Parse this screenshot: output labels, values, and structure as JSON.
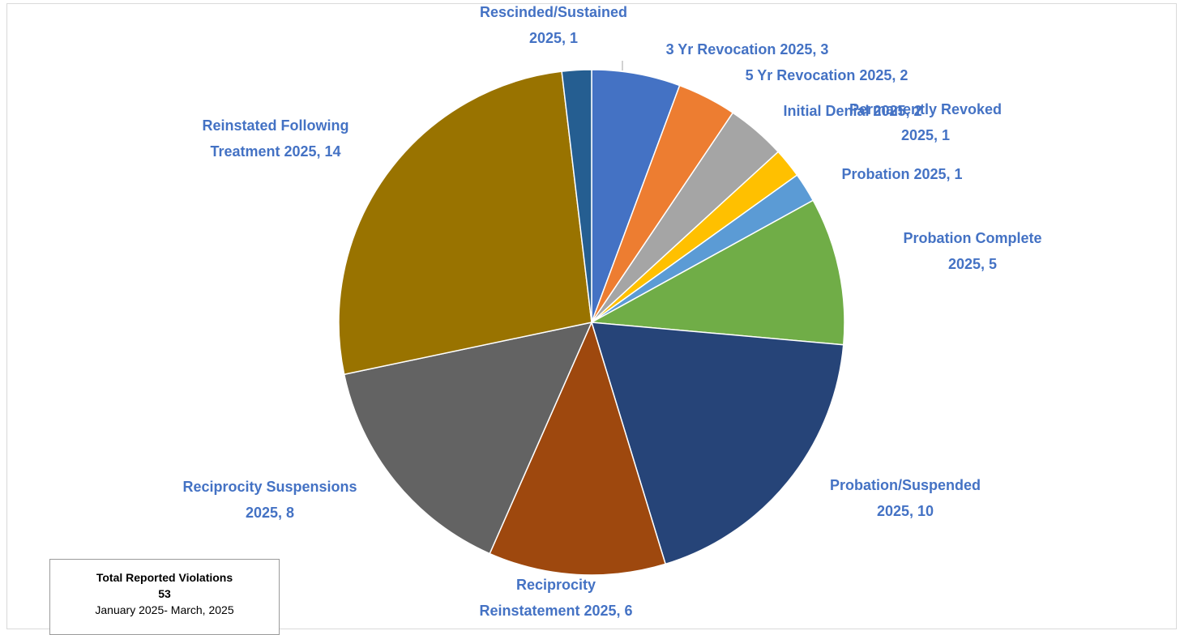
{
  "chart_data": {
    "type": "pie",
    "total_box": {
      "title": "Total Reported Violations",
      "total": "53",
      "period": "January 2025- March, 2025"
    },
    "slices": [
      {
        "name": "3 Yr Revocation",
        "year": "2025",
        "value": 3,
        "label": [
          "3 Yr Revocation 2025, 3"
        ],
        "color": "#4472c4"
      },
      {
        "name": "5 Yr Revocation",
        "year": "2025",
        "value": 2,
        "label": [
          "5 Yr Revocation 2025, 2"
        ],
        "color": "#ed7d31"
      },
      {
        "name": "Initial Denial",
        "year": "2025",
        "value": 2,
        "label": [
          "Initial Denial 2025, 2"
        ],
        "color": "#a5a5a5"
      },
      {
        "name": "Permanently Revoked",
        "year": "2025",
        "value": 1,
        "label": [
          "Permanently Revoked",
          "2025, 1"
        ],
        "color": "#ffc000"
      },
      {
        "name": "Probation",
        "year": "2025",
        "value": 1,
        "label": [
          "Probation 2025, 1"
        ],
        "color": "#5b9bd5"
      },
      {
        "name": "Probation Complete",
        "year": "2025",
        "value": 5,
        "label": [
          "Probation Complete",
          "2025, 5"
        ],
        "color": "#70ad47"
      },
      {
        "name": "Probation/Suspended",
        "year": "2025",
        "value": 10,
        "label": [
          "Probation/Suspended",
          "2025, 10"
        ],
        "color": "#264478"
      },
      {
        "name": "Reciprocity Reinstatement",
        "year": "2025",
        "value": 6,
        "label": [
          "Reciprocity",
          "Reinstatement 2025, 6"
        ],
        "color": "#9e480e"
      },
      {
        "name": "Reciprocity Suspensions",
        "year": "2025",
        "value": 8,
        "label": [
          "Reciprocity Suspensions",
          "2025, 8"
        ],
        "color": "#636363"
      },
      {
        "name": "Reinstated Following Treatment",
        "year": "2025",
        "value": 14,
        "label": [
          "Reinstated Following",
          "Treatment 2025, 14"
        ],
        "color": "#997300"
      },
      {
        "name": "Rescinded/Sustained",
        "year": "2025",
        "value": 1,
        "label": [
          "Rescinded/Sustained",
          "2025, 1"
        ],
        "color": "#255e91"
      }
    ],
    "label_color": "#4472c4"
  }
}
